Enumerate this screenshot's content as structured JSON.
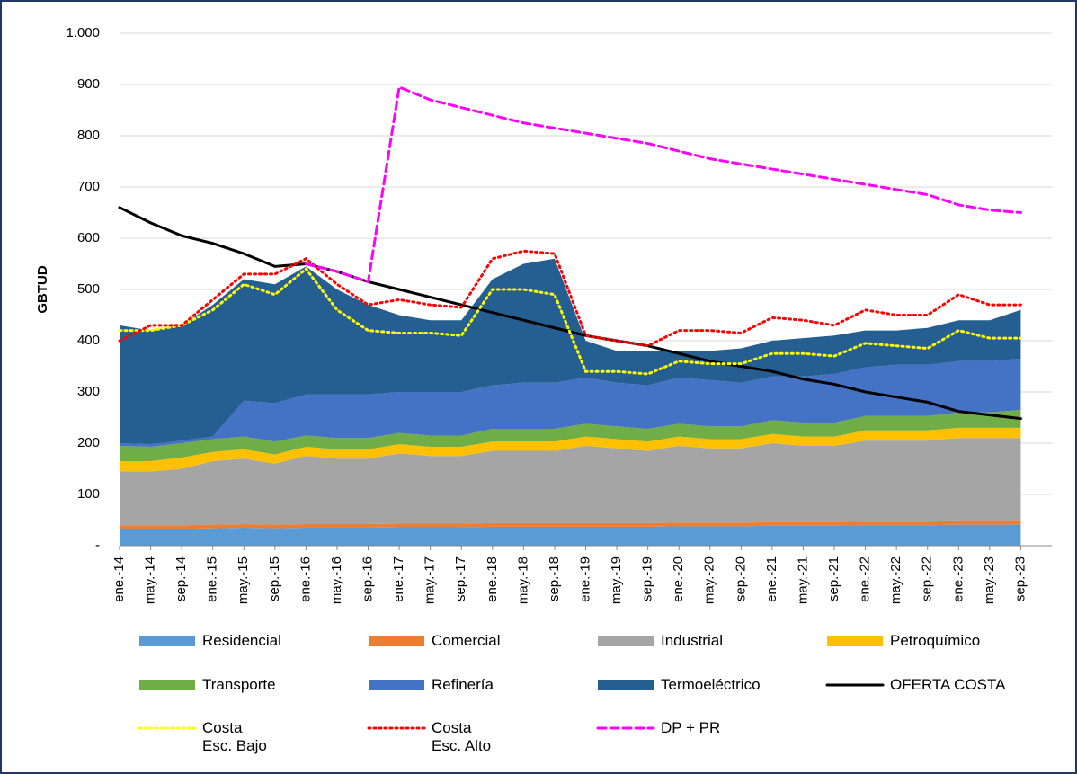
{
  "chart_data": {
    "type": "area",
    "y_label": "GBTUD",
    "categories": [
      "ene.-14",
      "may.-14",
      "sep.-14",
      "ene.-15",
      "may.-15",
      "sep.-15",
      "ene.-16",
      "may.-16",
      "sep.-16",
      "ene.-17",
      "may.-17",
      "sep.-17",
      "ene.-18",
      "may.-18",
      "sep.-18",
      "ene.-19",
      "may.-19",
      "sep.-19",
      "ene.-20",
      "may.-20",
      "sep.-20",
      "ene.-21",
      "may.-21",
      "sep.-21",
      "ene.-22",
      "may.-22",
      "sep.-22",
      "ene.-23",
      "may.-23",
      "sep.-23"
    ],
    "ylim": [
      0,
      1000
    ],
    "yticks": [
      {
        "value": 0,
        "label": "-"
      },
      100,
      200,
      300,
      400,
      500,
      600,
      700,
      800,
      900,
      {
        "value": 1000,
        "label": "1.000"
      }
    ],
    "grid": true,
    "series": [
      {
        "name": "Residencial",
        "kind": "area",
        "color": "#5b9bd5",
        "values": [
          33,
          33,
          33,
          34,
          35,
          34,
          35,
          35,
          35,
          36,
          36,
          36,
          37,
          37,
          37,
          37,
          37,
          37,
          38,
          38,
          38,
          39,
          39,
          39,
          40,
          40,
          40,
          41,
          41,
          41
        ]
      },
      {
        "name": "Comercial",
        "kind": "area",
        "color": "#ed7d31",
        "values": [
          7,
          7,
          7,
          7,
          7,
          7,
          7,
          7,
          7,
          7,
          7,
          7,
          7,
          7,
          7,
          7,
          7,
          7,
          7,
          7,
          7,
          7,
          7,
          7,
          7,
          7,
          7,
          7,
          7,
          7
        ]
      },
      {
        "name": "Industrial",
        "kind": "area",
        "color": "#a5a5a5",
        "values": [
          105,
          105,
          110,
          124,
          128,
          119,
          133,
          128,
          128,
          137,
          132,
          132,
          141,
          141,
          141,
          151,
          146,
          141,
          150,
          145,
          145,
          154,
          149,
          149,
          158,
          158,
          158,
          162,
          162,
          162
        ]
      },
      {
        "name": "Petroquímico",
        "kind": "area",
        "color": "#ffc000",
        "values": [
          20,
          20,
          22,
          18,
          18,
          18,
          18,
          18,
          18,
          18,
          18,
          18,
          18,
          18,
          18,
          18,
          18,
          18,
          18,
          18,
          18,
          18,
          18,
          18,
          20,
          20,
          20,
          20,
          20,
          20
        ]
      },
      {
        "name": "Transporte",
        "kind": "area",
        "color": "#70ad47",
        "values": [
          30,
          28,
          28,
          25,
          25,
          25,
          22,
          22,
          22,
          22,
          22,
          22,
          25,
          25,
          25,
          25,
          25,
          25,
          25,
          25,
          25,
          27,
          27,
          27,
          28,
          28,
          28,
          30,
          30,
          35
        ]
      },
      {
        "name": "Refinería",
        "kind": "area",
        "color": "#4472c4",
        "values": [
          5,
          5,
          5,
          5,
          70,
          75,
          80,
          85,
          85,
          80,
          85,
          85,
          85,
          90,
          90,
          90,
          85,
          85,
          90,
          90,
          85,
          85,
          90,
          95,
          95,
          100,
          100,
          100,
          100,
          100
        ]
      },
      {
        "name": "Termoeléctrico",
        "kind": "area",
        "color": "#255e91",
        "values": [
          230,
          222,
          225,
          257,
          237,
          232,
          250,
          205,
          175,
          150,
          140,
          140,
          207,
          232,
          242,
          72,
          62,
          67,
          52,
          57,
          67,
          70,
          75,
          75,
          72,
          67,
          72,
          80,
          80,
          95
        ]
      },
      {
        "name": "OFERTA COSTA",
        "kind": "line",
        "style": "solid",
        "color": "#000000",
        "values": [
          660,
          630,
          605,
          590,
          570,
          545,
          550,
          535,
          515,
          500,
          485,
          470,
          455,
          440,
          425,
          410,
          400,
          390,
          375,
          360,
          350,
          340,
          325,
          315,
          300,
          290,
          280,
          262,
          255,
          248
        ]
      },
      {
        "name": "Costa\nEsc. Bajo",
        "kind": "line",
        "style": "dotted",
        "color": "#ffff00",
        "values": [
          420,
          420,
          430,
          460,
          510,
          490,
          540,
          460,
          420,
          415,
          415,
          410,
          500,
          500,
          490,
          340,
          340,
          335,
          360,
          355,
          355,
          375,
          375,
          370,
          395,
          390,
          385,
          420,
          405,
          405
        ]
      },
      {
        "name": "Costa\nEsc. Alto",
        "kind": "line",
        "style": "dotted",
        "color": "#ff0000",
        "values": [
          400,
          430,
          430,
          480,
          530,
          530,
          560,
          510,
          470,
          480,
          470,
          465,
          560,
          575,
          570,
          410,
          400,
          390,
          420,
          420,
          415,
          445,
          440,
          430,
          460,
          450,
          450,
          490,
          470,
          470
        ]
      },
      {
        "name": "DP + PR",
        "kind": "line",
        "style": "dashed",
        "color": "#ff00ff",
        "values": [
          null,
          null,
          null,
          null,
          null,
          null,
          550,
          535,
          515,
          895,
          870,
          855,
          840,
          825,
          815,
          805,
          795,
          785,
          770,
          755,
          745,
          735,
          725,
          715,
          705,
          695,
          685,
          665,
          655,
          650
        ]
      }
    ]
  }
}
